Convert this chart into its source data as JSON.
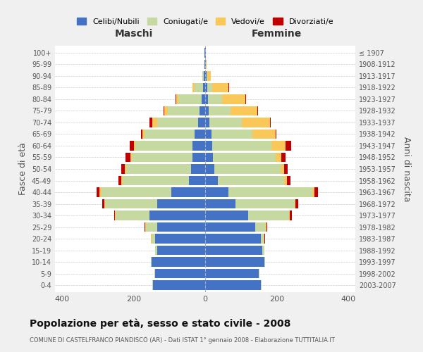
{
  "age_groups": [
    "0-4",
    "5-9",
    "10-14",
    "15-19",
    "20-24",
    "25-29",
    "30-34",
    "35-39",
    "40-44",
    "45-49",
    "50-54",
    "55-59",
    "60-64",
    "65-69",
    "70-74",
    "75-79",
    "80-84",
    "85-89",
    "90-94",
    "95-99",
    "100+"
  ],
  "birth_years": [
    "2003-2007",
    "1998-2002",
    "1993-1997",
    "1988-1992",
    "1983-1987",
    "1978-1982",
    "1973-1977",
    "1968-1972",
    "1963-1967",
    "1958-1962",
    "1953-1957",
    "1948-1952",
    "1943-1947",
    "1938-1942",
    "1933-1937",
    "1928-1932",
    "1923-1927",
    "1918-1922",
    "1913-1917",
    "1908-1912",
    "≤ 1907"
  ],
  "males": {
    "celibi": [
      145,
      140,
      150,
      135,
      140,
      135,
      155,
      135,
      95,
      45,
      40,
      35,
      35,
      30,
      20,
      15,
      10,
      5,
      3,
      1,
      1
    ],
    "coniugati": [
      2,
      2,
      2,
      5,
      10,
      30,
      95,
      145,
      195,
      185,
      180,
      170,
      160,
      140,
      115,
      90,
      65,
      25,
      5,
      0,
      0
    ],
    "vedovi": [
      0,
      0,
      0,
      0,
      1,
      2,
      2,
      2,
      5,
      5,
      5,
      5,
      5,
      5,
      12,
      10,
      5,
      5,
      0,
      0,
      0
    ],
    "divorziati": [
      0,
      0,
      0,
      0,
      1,
      2,
      2,
      5,
      8,
      8,
      10,
      12,
      10,
      5,
      8,
      2,
      2,
      0,
      0,
      0,
      0
    ]
  },
  "females": {
    "nubili": [
      155,
      150,
      165,
      160,
      155,
      140,
      120,
      85,
      65,
      35,
      25,
      22,
      20,
      18,
      12,
      10,
      8,
      5,
      3,
      1,
      1
    ],
    "coniugate": [
      2,
      2,
      2,
      5,
      10,
      30,
      115,
      165,
      235,
      185,
      185,
      175,
      165,
      115,
      90,
      60,
      40,
      15,
      3,
      0,
      0
    ],
    "vedove": [
      0,
      0,
      0,
      0,
      1,
      2,
      2,
      2,
      5,
      8,
      10,
      15,
      40,
      65,
      80,
      75,
      65,
      45,
      10,
      2,
      0
    ],
    "divorziate": [
      0,
      0,
      0,
      0,
      1,
      2,
      5,
      8,
      10,
      10,
      10,
      12,
      15,
      2,
      2,
      2,
      2,
      2,
      0,
      0,
      0
    ]
  },
  "colors": {
    "celibi": "#4472C4",
    "coniugati": "#C5D9A0",
    "vedovi": "#FAC858",
    "divorziati": "#C00000"
  },
  "legend_labels": [
    "Celibi/Nubili",
    "Coniugati/e",
    "Vedovi/e",
    "Divorziati/e"
  ],
  "xlim": 420,
  "title": "Popolazione per età, sesso e stato civile - 2008",
  "subtitle": "COMUNE DI CASTELFRANCO PIANDISCÒ (AR) - Dati ISTAT 1° gennaio 2008 - Elaborazione TUTTITALIA.IT",
  "ylabel_left": "Fasce di età",
  "ylabel_right": "Anni di nascita",
  "xlabel_left": "Maschi",
  "xlabel_right": "Femmine",
  "bg_color": "#f0f0f0",
  "plot_bg": "#ffffff"
}
